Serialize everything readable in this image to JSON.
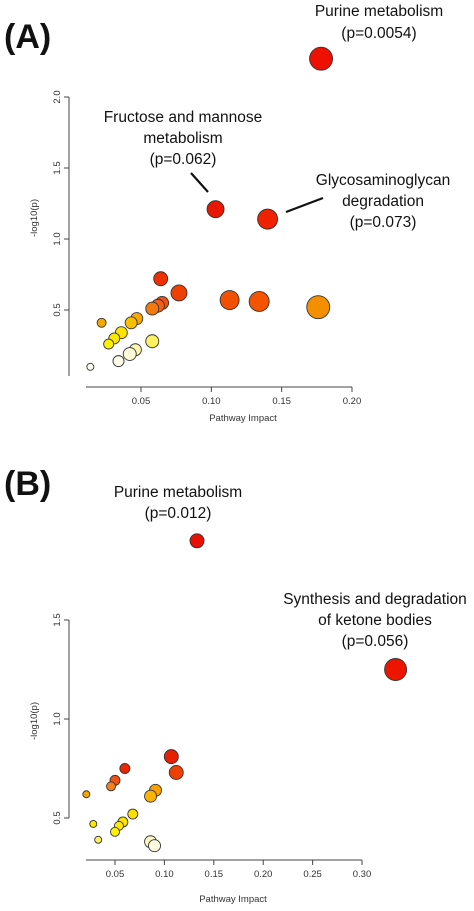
{
  "chart_data": [
    {
      "type": "scatter",
      "panel_label": "(A)",
      "xlabel": "Pathway Impact",
      "ylabel": "-log10(p)",
      "xticks": [
        "0.05",
        "0.10",
        "0.15",
        "0.20"
      ],
      "yticks": [
        "0.5",
        "1.0",
        "1.5",
        "2.0"
      ],
      "xlim": [
        0.0,
        0.205
      ],
      "ylim": [
        0.0,
        2.05
      ],
      "grid": false,
      "annotations": [
        {
          "lines": [
            "Purine metabolism",
            "(p=0.0054)"
          ]
        },
        {
          "lines": [
            "Fructose and mannose",
            "metabolism",
            "(p=0.062)"
          ]
        },
        {
          "lines": [
            "Glycosaminoglycan",
            "degradation",
            "(p=0.073)"
          ]
        }
      ],
      "points": [
        {
          "x": 0.178,
          "y": 2.27,
          "r": 11.5,
          "color": "#ee1000"
        },
        {
          "x": 0.103,
          "y": 1.21,
          "r": 8.5,
          "color": "#e81800"
        },
        {
          "x": 0.14,
          "y": 1.14,
          "r": 10,
          "color": "#ee2200"
        },
        {
          "x": 0.064,
          "y": 0.72,
          "r": 7,
          "color": "#ee3000"
        },
        {
          "x": 0.077,
          "y": 0.62,
          "r": 8,
          "color": "#ee4000"
        },
        {
          "x": 0.113,
          "y": 0.57,
          "r": 9.5,
          "color": "#f25000"
        },
        {
          "x": 0.134,
          "y": 0.56,
          "r": 10,
          "color": "#f45400"
        },
        {
          "x": 0.176,
          "y": 0.52,
          "r": 11.5,
          "color": "#f49000"
        },
        {
          "x": 0.065,
          "y": 0.55,
          "r": 6.5,
          "color": "#f05010"
        },
        {
          "x": 0.062,
          "y": 0.53,
          "r": 6.5,
          "color": "#f26018"
        },
        {
          "x": 0.058,
          "y": 0.51,
          "r": 6.5,
          "color": "#f47a10"
        },
        {
          "x": 0.047,
          "y": 0.44,
          "r": 6,
          "color": "#f8a800"
        },
        {
          "x": 0.043,
          "y": 0.41,
          "r": 6,
          "color": "#f8c000"
        },
        {
          "x": 0.022,
          "y": 0.41,
          "r": 4.5,
          "color": "#f4a800"
        },
        {
          "x": 0.036,
          "y": 0.34,
          "r": 6,
          "color": "#fbe400"
        },
        {
          "x": 0.031,
          "y": 0.3,
          "r": 5.5,
          "color": "#fde800"
        },
        {
          "x": 0.027,
          "y": 0.26,
          "r": 5,
          "color": "#fdf000"
        },
        {
          "x": 0.058,
          "y": 0.28,
          "r": 6.5,
          "color": "#fff060"
        },
        {
          "x": 0.046,
          "y": 0.22,
          "r": 6,
          "color": "#fff8b0"
        },
        {
          "x": 0.042,
          "y": 0.19,
          "r": 6.5,
          "color": "#fffad8"
        },
        {
          "x": 0.034,
          "y": 0.14,
          "r": 5.5,
          "color": "#fffde8"
        },
        {
          "x": 0.014,
          "y": 0.1,
          "r": 3.5,
          "color": "#fffef4"
        }
      ]
    },
    {
      "type": "scatter",
      "panel_label": "(B)",
      "xlabel": "Pathway Impact",
      "ylabel": "-log10(p)",
      "xticks": [
        "0.05",
        "0.10",
        "0.15",
        "0.20",
        "0.25",
        "0.30"
      ],
      "yticks": [
        "0.5",
        "1.0",
        "1.5"
      ],
      "xlim": [
        0.0,
        0.34
      ],
      "ylim": [
        0.35,
        1.7
      ],
      "grid": false,
      "annotations": [
        {
          "lines": [
            "Purine metabolism",
            "(p=0.012)"
          ]
        },
        {
          "lines": [
            "Synthesis and degradation",
            "of ketone bodies",
            "(p=0.056)"
          ]
        }
      ],
      "points": [
        {
          "x": 0.133,
          "y": 1.9,
          "r": 7,
          "color": "#e81000"
        },
        {
          "x": 0.334,
          "y": 1.25,
          "r": 11,
          "color": "#ee1500"
        },
        {
          "x": 0.107,
          "y": 0.81,
          "r": 7,
          "color": "#e82000"
        },
        {
          "x": 0.112,
          "y": 0.73,
          "r": 7,
          "color": "#ee4000"
        },
        {
          "x": 0.06,
          "y": 0.75,
          "r": 5,
          "color": "#ee2500"
        },
        {
          "x": 0.05,
          "y": 0.69,
          "r": 5,
          "color": "#f05010"
        },
        {
          "x": 0.046,
          "y": 0.66,
          "r": 4.5,
          "color": "#f28020"
        },
        {
          "x": 0.021,
          "y": 0.62,
          "r": 3.5,
          "color": "#f4a800"
        },
        {
          "x": 0.091,
          "y": 0.64,
          "r": 6,
          "color": "#f8a000"
        },
        {
          "x": 0.086,
          "y": 0.61,
          "r": 6,
          "color": "#f8b400"
        },
        {
          "x": 0.068,
          "y": 0.52,
          "r": 5,
          "color": "#fbe000"
        },
        {
          "x": 0.058,
          "y": 0.48,
          "r": 5,
          "color": "#fce400"
        },
        {
          "x": 0.054,
          "y": 0.46,
          "r": 4.5,
          "color": "#fdea00"
        },
        {
          "x": 0.05,
          "y": 0.43,
          "r": 4.5,
          "color": "#fdf000"
        },
        {
          "x": 0.028,
          "y": 0.47,
          "r": 3.5,
          "color": "#fde800"
        },
        {
          "x": 0.033,
          "y": 0.39,
          "r": 3.5,
          "color": "#fef060"
        },
        {
          "x": 0.086,
          "y": 0.38,
          "r": 6,
          "color": "#fff8c0"
        },
        {
          "x": 0.09,
          "y": 0.36,
          "r": 6,
          "color": "#fffae0"
        }
      ]
    }
  ]
}
